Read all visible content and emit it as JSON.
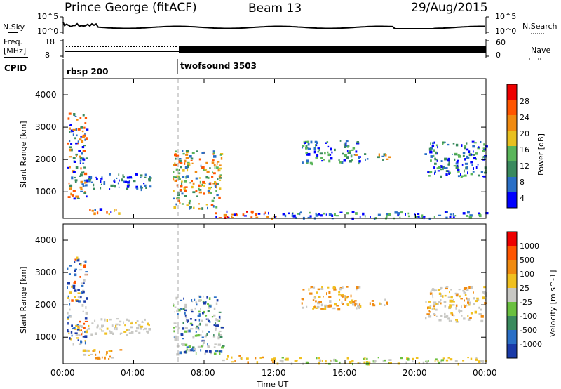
{
  "header": {
    "site": "Prince George (fitACF)",
    "beam": "Beam 13",
    "date": "29/Aug/2015"
  },
  "panels": {
    "nsky_label": "N.Sky",
    "nsearch_label": "N.Search",
    "freq_label_1": "Freq.",
    "freq_label_2": "[MHz]",
    "nave_label": "Nave",
    "cpid_label": "CPID",
    "noise_ticks_left": [
      "10^5",
      "10^0"
    ],
    "noise_ticks_right": [
      "10^5",
      "10^0"
    ],
    "freq_ticks": [
      "18",
      "8"
    ],
    "nave_ticks": [
      "60",
      "0"
    ],
    "cpid_modes": [
      {
        "name": "rbsp 200"
      },
      {
        "name": "twofsound 3503"
      }
    ]
  },
  "colors": {
    "power_scale": [
      "#0000ff",
      "#2a6fc6",
      "#3a8a5e",
      "#5ab55a",
      "#e8c020",
      "#f08a10",
      "#ff5500",
      "#ee0000"
    ],
    "velocity_scale": [
      "#1a3aa8",
      "#2a6fc6",
      "#3a8a5e",
      "#6ac040",
      "#c8c8c4",
      "#f0c020",
      "#f08a10",
      "#ff5500",
      "#ee0000"
    ]
  },
  "chart_data": [
    {
      "type": "heatmap",
      "quantity": "power",
      "ylabel": "Slant Range [km]",
      "ylim": [
        180,
        4500
      ],
      "yticks": [
        "4000",
        "3000",
        "2000",
        "1000"
      ],
      "xlim": [
        "00:00",
        "24:00"
      ],
      "colorbar_label": "Power [dB]",
      "colorbar_ticks": [
        "28",
        "24",
        "20",
        "16",
        "12",
        "8",
        "4"
      ],
      "colorbar_range": [
        0,
        30
      ],
      "regions": [
        {
          "t": [
            0.2,
            1.3
          ],
          "r": [
            800,
            3500
          ],
          "level": "mixed-blue"
        },
        {
          "t": [
            1.0,
            3.2
          ],
          "r": [
            350,
            500
          ],
          "level": "blue-orange"
        },
        {
          "t": [
            1.0,
            5.0
          ],
          "r": [
            1100,
            1600
          ],
          "level": "blue"
        },
        {
          "t": [
            6.2,
            9.0
          ],
          "r": [
            500,
            2300
          ],
          "level": "orange-green"
        },
        {
          "t": [
            8.5,
            12.0
          ],
          "r": [
            200,
            450
          ],
          "level": "red"
        },
        {
          "t": [
            13.5,
            16.8
          ],
          "r": [
            1900,
            2600
          ],
          "level": "blue-green"
        },
        {
          "t": [
            16.5,
            18.5
          ],
          "r": [
            2000,
            2200
          ],
          "level": "mixed"
        },
        {
          "t": [
            20.5,
            24.0
          ],
          "r": [
            1500,
            2600
          ],
          "level": "green-blue"
        },
        {
          "t": [
            12.0,
            24.0
          ],
          "r": [
            200,
            400
          ],
          "level": "sparse-blue"
        }
      ]
    },
    {
      "type": "heatmap",
      "quantity": "velocity",
      "ylabel": "Slant Range [km]",
      "ylim": [
        180,
        4500
      ],
      "yticks": [
        "4000",
        "3000",
        "2000",
        "1000"
      ],
      "xlim": [
        "00:00",
        "24:00"
      ],
      "colorbar_label": "Velocity [m s^-1]",
      "colorbar_ticks": [
        "1000",
        "500",
        "100",
        "25",
        "-25",
        "-100",
        "-500",
        "-1000"
      ],
      "regions": [
        {
          "t": [
            0.2,
            1.3
          ],
          "r": [
            800,
            3500
          ],
          "level": "mixed-grey"
        },
        {
          "t": [
            1.0,
            3.2
          ],
          "r": [
            350,
            650
          ],
          "level": "orange"
        },
        {
          "t": [
            1.0,
            5.0
          ],
          "r": [
            1100,
            1600
          ],
          "level": "grey"
        },
        {
          "t": [
            6.2,
            9.0
          ],
          "r": [
            500,
            2300
          ],
          "level": "grey-blue-green"
        },
        {
          "t": [
            9.0,
            12.0
          ],
          "r": [
            250,
            450
          ],
          "level": "orange-yellow"
        },
        {
          "t": [
            13.5,
            16.8
          ],
          "r": [
            1900,
            2600
          ],
          "level": "orange"
        },
        {
          "t": [
            16.5,
            18.5
          ],
          "r": [
            2000,
            2200
          ],
          "level": "orange"
        },
        {
          "t": [
            20.5,
            24.0
          ],
          "r": [
            1500,
            2600
          ],
          "level": "grey-orange"
        },
        {
          "t": [
            12.0,
            24.0
          ],
          "r": [
            200,
            400
          ],
          "level": "yellow-green"
        }
      ]
    }
  ],
  "xaxis": {
    "ticks": [
      "00:00",
      "04:00",
      "08:00",
      "12:00",
      "16:00",
      "20:00",
      "00:00"
    ],
    "label": "Time UT"
  }
}
